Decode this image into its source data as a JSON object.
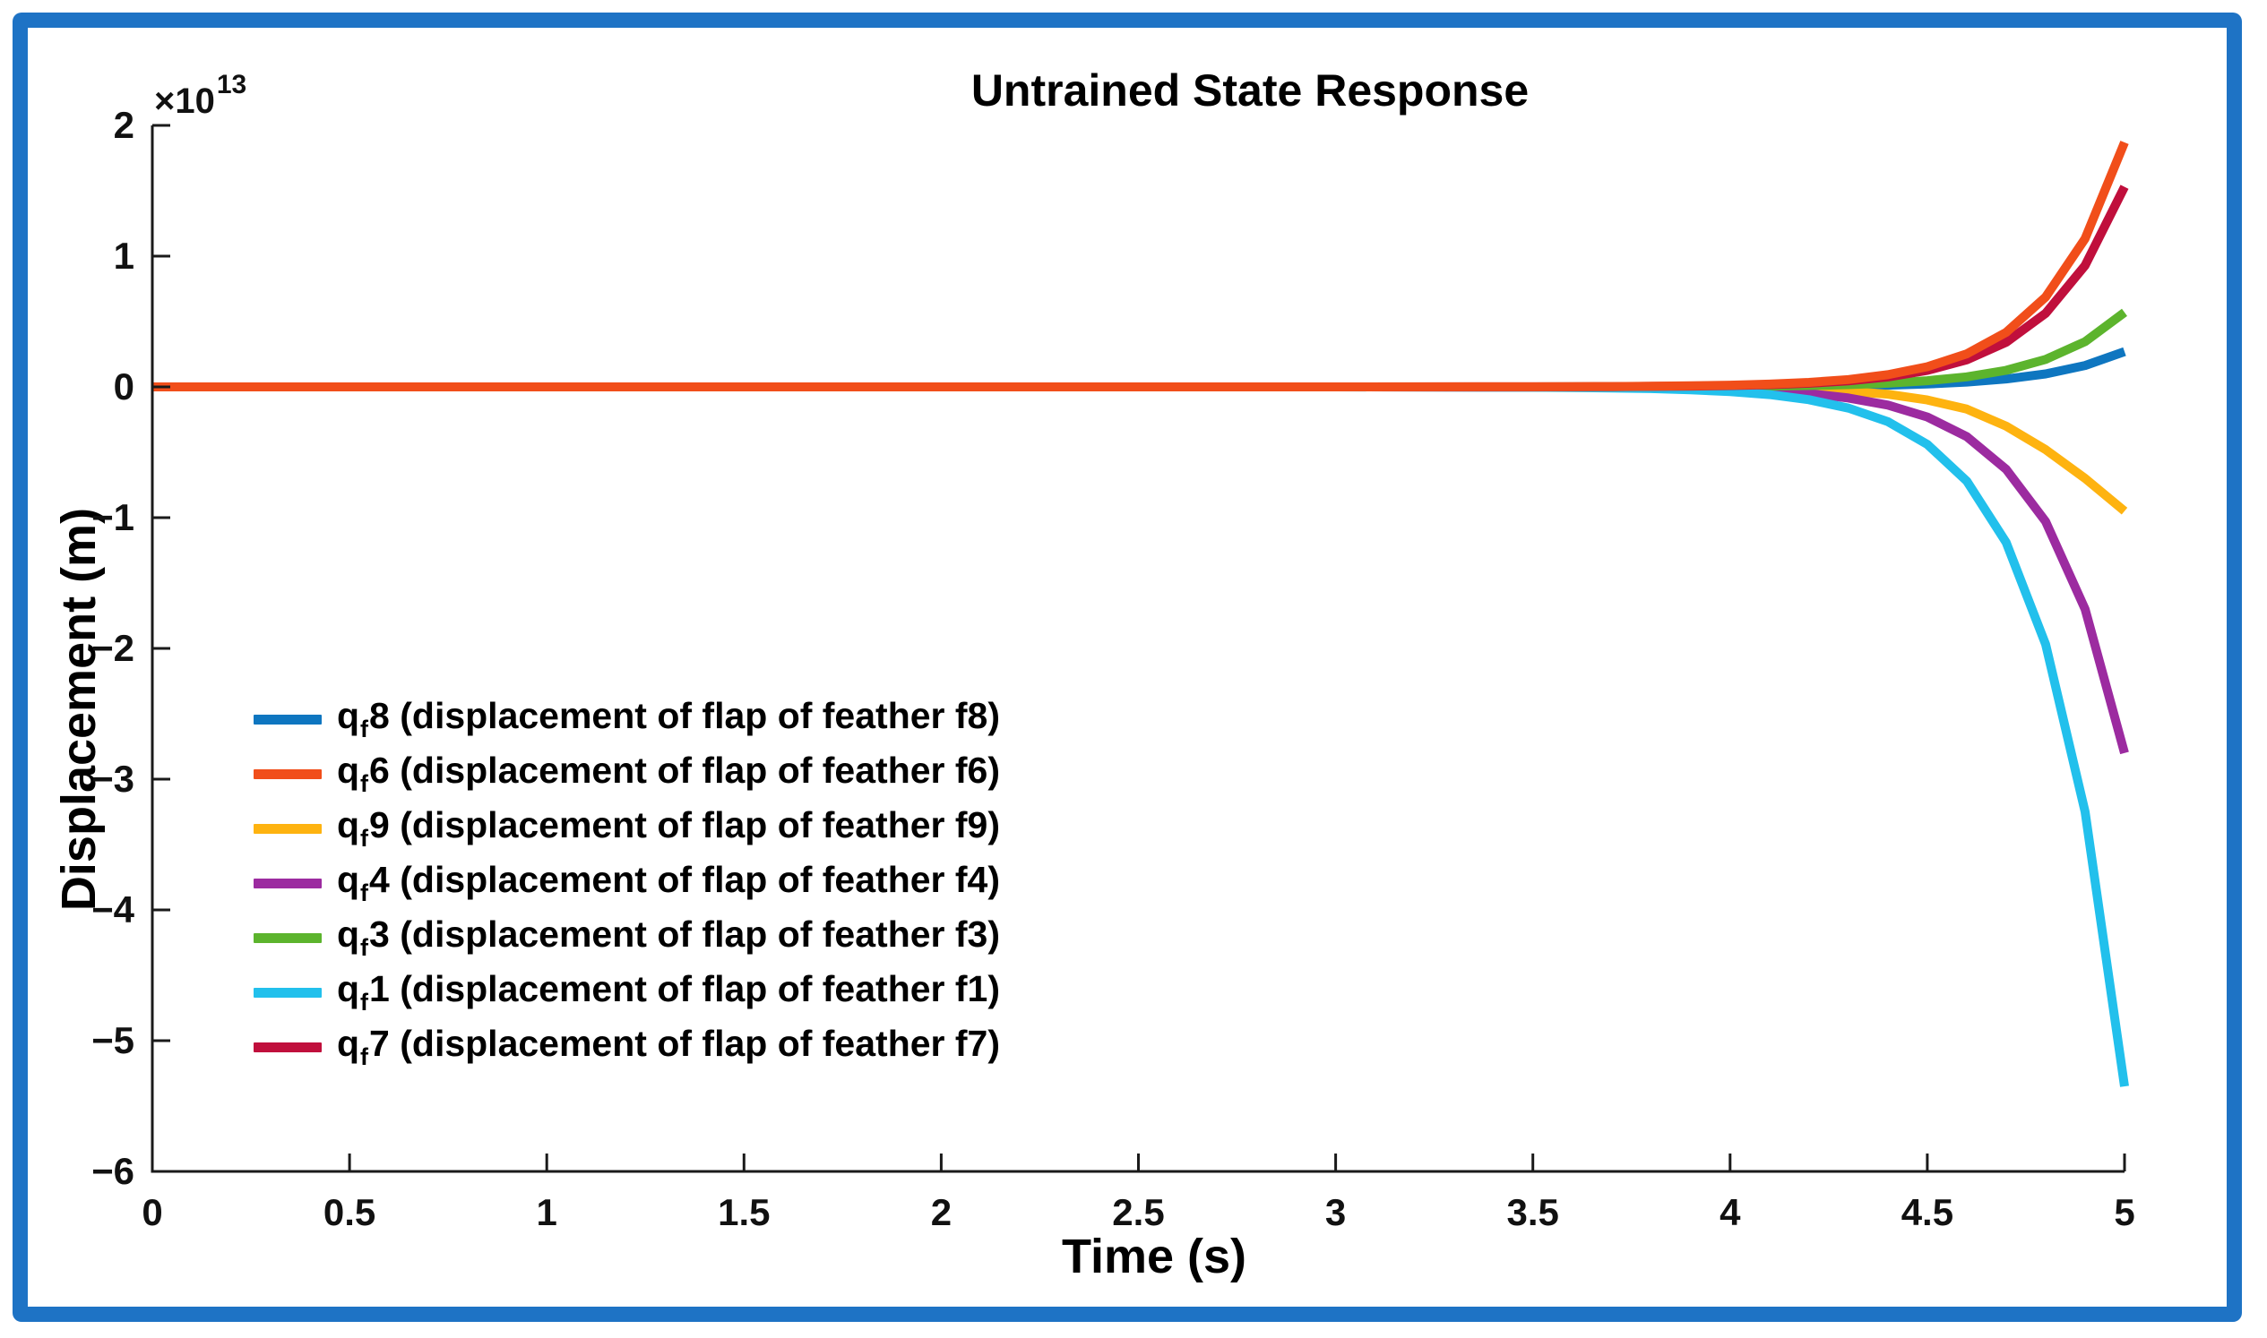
{
  "page": {
    "background_color": "#ffffff",
    "frame_color": "#1e73c5"
  },
  "chart_data": {
    "type": "line",
    "title": "Untrained State Response",
    "xlabel": "Time (s)",
    "ylabel": "Displacement (m)",
    "y_scale_label": {
      "base": "×10",
      "exponent": "13"
    },
    "value_unit": "1e13 m",
    "xlim": [
      0,
      5
    ],
    "ylim_e13": [
      -6,
      2
    ],
    "grid": false,
    "legend_position": "inside-left-middle",
    "axis_color": "#1a1a1a",
    "x_ticks": {
      "values": [
        0,
        0.5,
        1,
        1.5,
        2,
        2.5,
        3,
        3.5,
        4,
        4.5,
        5
      ],
      "labels": [
        "0",
        "0.5",
        "1",
        "1.5",
        "2",
        "2.5",
        "3",
        "3.5",
        "4",
        "4.5",
        "5"
      ]
    },
    "y_ticks": {
      "values": [
        2,
        1,
        0,
        -1,
        -2,
        -3,
        -4,
        -5,
        -6
      ],
      "labels": [
        "2",
        "1",
        "0",
        "−1",
        "−2",
        "−3",
        "−4",
        "−5",
        "−6"
      ]
    },
    "x": [
      0,
      0.5,
      1,
      1.5,
      2,
      2.5,
      3,
      3.5,
      3.6,
      3.7,
      3.8,
      3.9,
      4,
      4.1,
      4.2,
      4.3,
      4.4,
      4.5,
      4.6,
      4.7,
      4.8,
      4.9,
      5
    ],
    "series": [
      {
        "id": "qf8",
        "legend_prefix": "q",
        "legend_sub": "f",
        "legend_text": "8 (displacement of flap of feather f8)",
        "color": "#0e76c0",
        "end_value_e13": 0.27,
        "values_e13": [
          0,
          0,
          0,
          0,
          0,
          0,
          0,
          0,
          0,
          0,
          0.001,
          0.001,
          0.002,
          0.003,
          0.005,
          0.008,
          0.013,
          0.022,
          0.037,
          0.06,
          0.099,
          0.164,
          0.27
        ]
      },
      {
        "id": "qf6",
        "legend_prefix": "q",
        "legend_sub": "f",
        "legend_text": "6 (displacement of flap of feather f6)",
        "color": "#f14e1a",
        "end_value_e13": 1.87,
        "values_e13": [
          0,
          0,
          0,
          0,
          0,
          0,
          0,
          0.001,
          0.002,
          0.003,
          0.005,
          0.008,
          0.013,
          0.021,
          0.034,
          0.056,
          0.093,
          0.154,
          0.253,
          0.417,
          0.688,
          1.134,
          1.87
        ]
      },
      {
        "id": "qf9",
        "legend_prefix": "q",
        "legend_sub": "f",
        "legend_text": "9 (displacement of flap of feather f9)",
        "color": "#feb310",
        "end_value_e13": -0.95,
        "values_e13": [
          0,
          0,
          0,
          0,
          0,
          0,
          0,
          -0.001,
          -0.001,
          -0.002,
          -0.003,
          -0.005,
          -0.008,
          -0.013,
          -0.021,
          -0.034,
          -0.056,
          -0.1,
          -0.17,
          -0.3,
          -0.48,
          -0.7,
          -0.95
        ]
      },
      {
        "id": "qf4",
        "legend_prefix": "q",
        "legend_sub": "f",
        "legend_text": "4 (displacement of flap of feather f4)",
        "color": "#9c2ba0",
        "end_value_e13": -2.8,
        "values_e13": [
          0,
          0,
          0,
          0,
          0,
          0,
          0,
          -0.002,
          -0.003,
          -0.004,
          -0.007,
          -0.011,
          -0.019,
          -0.031,
          -0.051,
          -0.085,
          -0.139,
          -0.23,
          -0.38,
          -0.63,
          -1.03,
          -1.7,
          -2.8
        ]
      },
      {
        "id": "qf3",
        "legend_prefix": "q",
        "legend_sub": "f",
        "legend_text": "3 (displacement of flap of feather f3)",
        "color": "#5cb42d",
        "end_value_e13": 0.57,
        "values_e13": [
          0,
          0,
          0,
          0,
          0,
          0,
          0,
          0,
          0.001,
          0.001,
          0.001,
          0.002,
          0.004,
          0.006,
          0.01,
          0.017,
          0.028,
          0.047,
          0.077,
          0.127,
          0.21,
          0.346,
          0.57
        ]
      },
      {
        "id": "qf1",
        "legend_prefix": "q",
        "legend_sub": "f",
        "legend_text": "1 (displacement of flap of feather f1)",
        "color": "#22c0ec",
        "end_value_e13": -5.35,
        "values_e13": [
          0,
          0,
          0,
          0,
          0,
          0,
          0,
          -0.003,
          -0.005,
          -0.008,
          -0.013,
          -0.022,
          -0.036,
          -0.059,
          -0.098,
          -0.162,
          -0.266,
          -0.44,
          -0.72,
          -1.19,
          -1.97,
          -3.25,
          -5.35
        ]
      },
      {
        "id": "qf7",
        "legend_prefix": "q",
        "legend_sub": "f",
        "legend_text": "7 (displacement of flap of feather f7)",
        "color": "#c00f3c",
        "end_value_e13": 1.53,
        "values_e13": [
          0,
          0,
          0,
          0,
          0,
          0,
          0,
          0.001,
          0.001,
          0.002,
          0.004,
          0.006,
          0.01,
          0.017,
          0.028,
          0.046,
          0.076,
          0.126,
          0.207,
          0.341,
          0.563,
          0.929,
          1.53
        ]
      }
    ],
    "draw_order": [
      "qf8",
      "qf9",
      "qf4",
      "qf3",
      "qf1",
      "qf7",
      "qf6"
    ]
  }
}
